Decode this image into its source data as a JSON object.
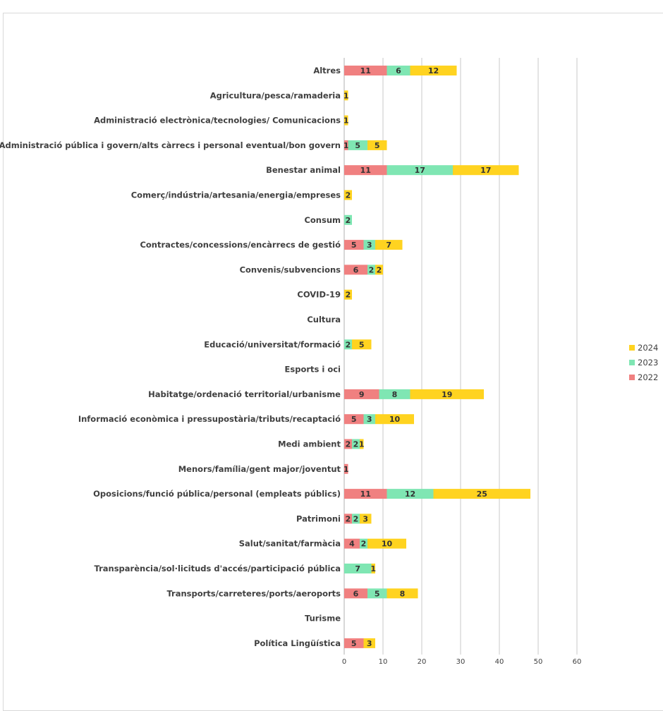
{
  "chart_data": {
    "type": "bar",
    "orientation": "horizontal",
    "stacked": true,
    "categories": [
      "Altres",
      "Agricultura/pesca/ramaderia",
      "Administració electrònica/tecnologies/ Comunicacions",
      "Administració pública i govern/alts càrrecs i personal eventual/bon govern",
      "Benestar animal",
      "Comerç/indústria/artesania/energia/empreses",
      "Consum",
      "Contractes/concessions/encàrrecs de gestió",
      "Convenis/subvencions",
      "COVID-19",
      "Cultura",
      "Educació/universitat/formació",
      "Esports i oci",
      "Habitatge/ordenació territorial/urbanisme",
      "Informació econòmica i pressupostària/tributs/recaptació",
      "Medi ambient",
      "Menors/família/gent major/joventut",
      "Oposicions/funció pública/personal (empleats públics)",
      "Patrimoni",
      "Salut/sanitat/farmàcia",
      "Transparència/sol·licituds d'accés/participació pública",
      "Transports/carreteres/ports/aeroports",
      "Turisme",
      "Política Lingüística"
    ],
    "series": [
      {
        "name": "2022",
        "color": "#f08080",
        "values": [
          11,
          0,
          0,
          1,
          11,
          0,
          0,
          5,
          6,
          0,
          0,
          0,
          0,
          9,
          5,
          2,
          1,
          11,
          2,
          4,
          0,
          6,
          0,
          5
        ]
      },
      {
        "name": "2023",
        "color": "#7fe6b3",
        "values": [
          6,
          0,
          0,
          5,
          17,
          0,
          2,
          3,
          2,
          0,
          0,
          2,
          0,
          8,
          3,
          2,
          0,
          12,
          2,
          2,
          7,
          5,
          0,
          0
        ]
      },
      {
        "name": "2024",
        "color": "#ffd320",
        "values": [
          12,
          1,
          1,
          5,
          17,
          2,
          0,
          7,
          2,
          2,
          0,
          5,
          0,
          19,
          10,
          1,
          0,
          25,
          3,
          10,
          1,
          8,
          0,
          3
        ]
      }
    ],
    "xlim": [
      0,
      60
    ],
    "xticks": [
      "0",
      "10",
      "20",
      "30",
      "40",
      "50",
      "60"
    ],
    "grid": true,
    "legend": "right",
    "legend_order": [
      "2024",
      "2023",
      "2022"
    ]
  }
}
